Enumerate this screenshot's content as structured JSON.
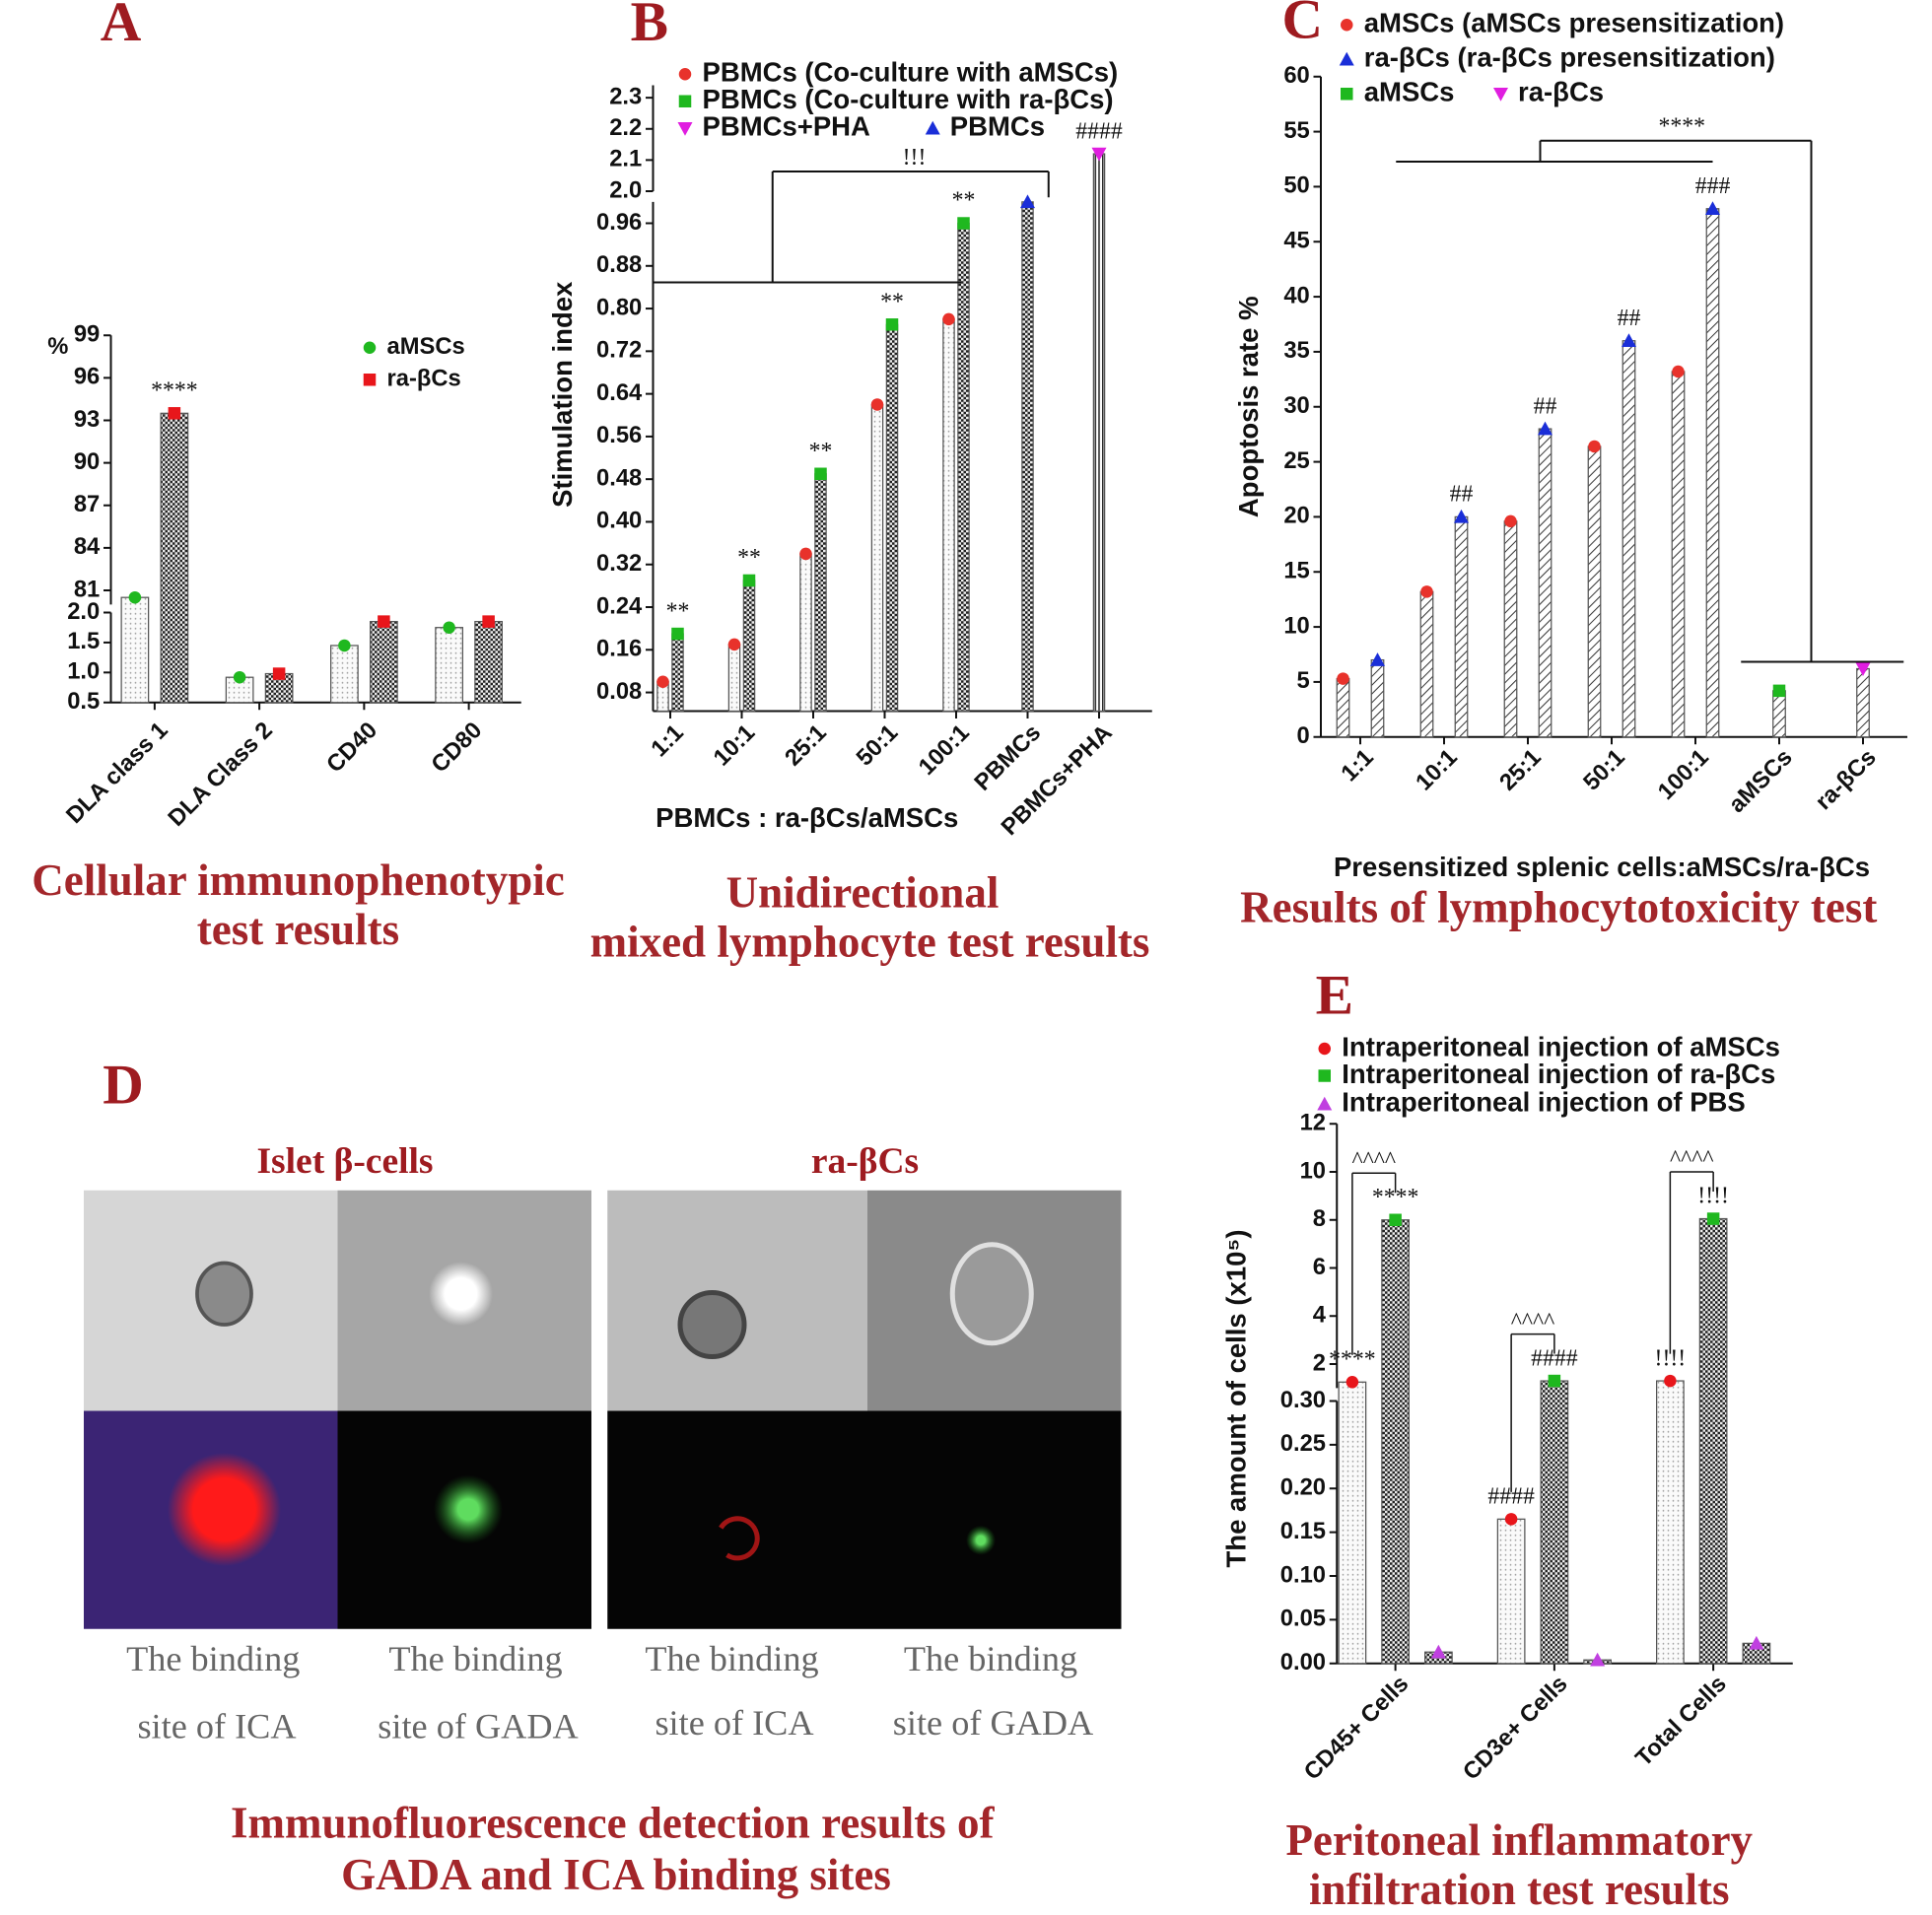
{
  "chart_data": [
    {
      "panel": "A",
      "type": "bar",
      "caption": [
        "Cellular immunophenotypic",
        "test results"
      ],
      "ylabel": "%",
      "categories": [
        "DLA class 1",
        "DLA Class 2",
        "CD40",
        "CD80"
      ],
      "y_segments": [
        {
          "ylim": [
            0.5,
            2.0
          ],
          "yticks": [
            0.5,
            {
              "value": 1.0,
              "label": "1.0"
            },
            1.5,
            {
              "value": 2.0,
              "label": "2.0"
            }
          ]
        },
        {
          "ylim": [
            80,
            99
          ],
          "yticks": [
            81,
            84,
            87,
            90,
            93,
            96,
            99
          ]
        }
      ],
      "series": [
        {
          "name": "aMSCs",
          "color": "#1fb81f",
          "marker": "circle",
          "pattern": "dots",
          "values": [
            80.5,
            0.92,
            1.45,
            1.75
          ],
          "annotations": [
            null,
            null,
            null,
            null
          ]
        },
        {
          "name": "ra-βCs",
          "color": "#e8161b",
          "marker": "square",
          "pattern": "check",
          "values": [
            93.5,
            0.98,
            1.85,
            1.85
          ],
          "annotations": [
            "****",
            null,
            null,
            null
          ]
        }
      ]
    },
    {
      "panel": "B",
      "type": "bar",
      "caption": [
        "Unidirectional",
        "mixed lymphocyte test results"
      ],
      "ylabel": "Stimulation index",
      "xlabel": "PBMCs : ra-βCs/aMSCs",
      "categories": [
        "1:1",
        "10:1",
        "25:1",
        "50:1",
        "100:1",
        "PBMCs",
        "PBMCs+PHA"
      ],
      "y_segments": [
        {
          "ylim": [
            0.045,
            1.0
          ],
          "yticks": [
            0.08,
            0.16,
            0.24,
            0.32,
            {
              "value": 0.4,
              "label": "0.40"
            },
            0.48,
            0.56,
            0.64,
            0.72,
            {
              "value": 0.8,
              "label": "0.80"
            },
            0.88,
            0.96
          ]
        },
        {
          "ylim": [
            2.0,
            2.34
          ],
          "yticks": [
            {
              "value": 2.0,
              "label": "2.0"
            },
            2.1,
            2.2,
            2.3
          ]
        }
      ],
      "bracket_label": "!!!",
      "series": [
        {
          "name": "PBMCs (Co-culture with aMSCs)",
          "color": "#e8322b",
          "marker": "circle",
          "pattern": "dots",
          "values": [
            0.1,
            0.17,
            0.34,
            0.62,
            0.78,
            null,
            null
          ]
        },
        {
          "name": "PBMCs (Co-culture with ra-βCs)",
          "color": "#1fb81f",
          "marker": "square",
          "pattern": "check",
          "values": [
            0.19,
            0.29,
            0.49,
            0.77,
            0.96,
            null,
            null
          ],
          "annotations": [
            "**",
            "**",
            "**",
            "**",
            "**",
            null,
            null
          ]
        },
        {
          "name": "PBMCs+PHA",
          "color": "#e01ee0",
          "marker": "tridown",
          "pattern": "vlines",
          "values": [
            null,
            null,
            null,
            null,
            null,
            null,
            2.12
          ],
          "annotations": [
            null,
            null,
            null,
            null,
            null,
            null,
            "####"
          ]
        },
        {
          "name": "PBMCs",
          "color": "#1a2ed8",
          "marker": "triangle",
          "pattern": "check",
          "values": [
            null,
            null,
            null,
            null,
            null,
            1.0,
            null
          ]
        }
      ]
    },
    {
      "panel": "C",
      "type": "bar",
      "caption": [
        "Results of lymphocytotoxicity test"
      ],
      "ylabel": "Apoptosis rate %",
      "xlabel": "Presensitized splenic cells:aMSCs/ra-βCs",
      "categories": [
        "1:1",
        "10:1",
        "25:1",
        "50:1",
        "100:1",
        "aMSCs",
        "ra-βCs"
      ],
      "ylim": [
        0,
        60
      ],
      "yticks": [
        0,
        5,
        10,
        15,
        20,
        25,
        30,
        35,
        40,
        45,
        50,
        55,
        60
      ],
      "bracket_label": "****",
      "series": [
        {
          "name": "aMSCs (aMSCs presensitization)",
          "color": "#e8322b",
          "marker": "circle",
          "pattern": "hatch",
          "values": [
            5.3,
            13.2,
            19.6,
            26.4,
            33.2,
            null,
            null
          ]
        },
        {
          "name": "ra-βCs (ra-βCs presensitization)",
          "color": "#1a2ed8",
          "marker": "triangle",
          "pattern": "hatch",
          "values": [
            7.0,
            20.0,
            28.0,
            36.0,
            48.0,
            null,
            null
          ],
          "annotations": [
            null,
            "##",
            "##",
            "##",
            "###",
            null,
            null
          ]
        },
        {
          "name": "aMSCs",
          "color": "#1fb81f",
          "marker": "square",
          "pattern": "hatch",
          "values": [
            null,
            null,
            null,
            null,
            null,
            4.2,
            null
          ]
        },
        {
          "name": "ra-βCs",
          "color": "#e01ee0",
          "marker": "tridown",
          "pattern": "hatch",
          "values": [
            null,
            null,
            null,
            null,
            null,
            null,
            6.2
          ]
        }
      ]
    },
    {
      "panel": "E",
      "type": "bar",
      "caption": [
        "Peritoneal inflammatory",
        "infiltration test results"
      ],
      "ylabel": "The amount of cells (x10⁵)",
      "categories": [
        "CD45+ Cells",
        "CD3e+ Cells",
        "Total Cells"
      ],
      "y_segments": [
        {
          "ylim": [
            0,
            0.3
          ],
          "yticks": [
            {
              "value": 0,
              "label": "0.00"
            },
            0.05,
            {
              "value": 0.1,
              "label": "0.10"
            },
            0.15,
            {
              "value": 0.2,
              "label": "0.20"
            },
            0.25,
            {
              "value": 0.3,
              "label": "0.30"
            }
          ]
        },
        {
          "ylim": [
            1,
            12
          ],
          "yticks": [
            2,
            4,
            6,
            8,
            10,
            12
          ]
        }
      ],
      "bracket_labels": [
        "^^^^",
        "^^^^",
        "^^^^"
      ],
      "series": [
        {
          "name": "Intraperitoneal injection of aMSCs",
          "color": "#e8161b",
          "marker": "circle",
          "pattern": "dots",
          "values": [
            1.25,
            0.165,
            1.3
          ],
          "annotations": [
            "****",
            "####",
            "!!!!"
          ]
        },
        {
          "name": "Intraperitoneal injection of ra-βCs",
          "color": "#1fb81f",
          "marker": "square",
          "pattern": "check",
          "values": [
            8.0,
            1.3,
            8.05
          ],
          "annotations": [
            "****",
            "####",
            "!!!!"
          ]
        },
        {
          "name": "Intraperitoneal injection of PBS",
          "color": "#c040e0",
          "marker": "triangle",
          "pattern": "check",
          "values": [
            0.013,
            0.004,
            0.023
          ]
        }
      ]
    }
  ],
  "panel_d": {
    "panel": "D",
    "groups": [
      {
        "title": "Islet β-cells",
        "labels": [
          [
            "The binding",
            "site of ICA"
          ],
          [
            "The binding",
            "site of GADA"
          ]
        ]
      },
      {
        "title": "ra-βCs",
        "labels": [
          [
            "The binding",
            "site of ICA"
          ],
          [
            "The binding",
            "site of GADA"
          ]
        ]
      }
    ],
    "caption": [
      "Immunofluorescence detection results of",
      "GADA and ICA binding sites"
    ]
  }
}
